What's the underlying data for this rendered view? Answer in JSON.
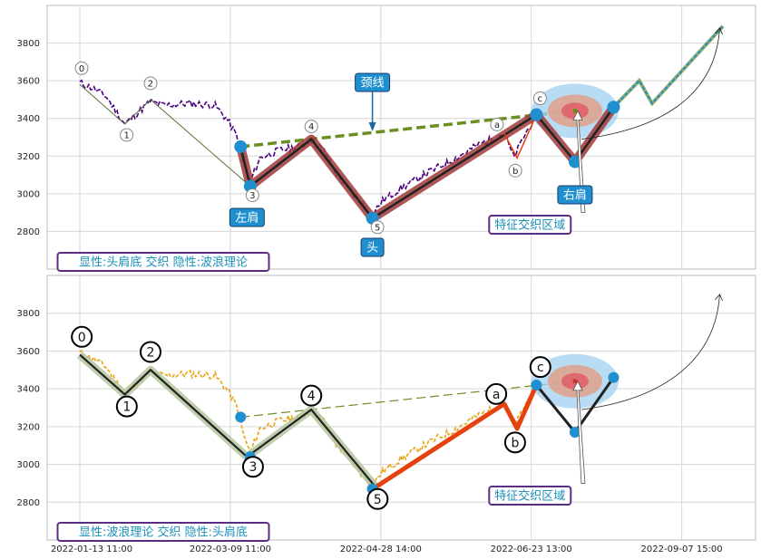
{
  "chart_data": {
    "type": "line",
    "x_tick_labels": [
      "2022-01-13 11:00",
      "2022-03-09 11:00",
      "2022-04-28 14:00",
      "2022-06-23 13:00",
      "2022-09-07 15:00"
    ],
    "y_ticks": [
      2800,
      3000,
      3200,
      3400,
      3600,
      3800
    ],
    "ylim": [
      2600,
      4000
    ],
    "grid": true,
    "panels": [
      {
        "caption": "显性:头肩底 交织 隐性:波浪理论",
        "price_color": "#4b0082",
        "wave_labels": [
          "0",
          "1",
          "2",
          "3",
          "4",
          "5",
          "a",
          "b",
          "c"
        ],
        "annotations": {
          "neckline": "颈线",
          "left_shoulder": "左肩",
          "head": "头",
          "right_shoulder": "右肩",
          "feature_zone": "特征交织区域"
        },
        "colors": {
          "zigzag": "#a03a3a",
          "neckline": "#6b8e23",
          "pattern_fill": "#1f8fd0"
        }
      },
      {
        "caption": "显性:波浪理论 交织 隐性:头肩底",
        "price_color": "#e8a317",
        "wave_labels": [
          "0",
          "1",
          "2",
          "3",
          "4",
          "5",
          "a",
          "b",
          "c"
        ],
        "annotations": {
          "feature_zone": "特征交织区域"
        },
        "colors": {
          "wave": "#222222",
          "impulse": "#e5420f",
          "neckline": "#6b8e23"
        }
      }
    ],
    "pivots": [
      {
        "label": "0",
        "x": 0.0,
        "y": 3580
      },
      {
        "label": "1",
        "x": 0.07,
        "y": 3370
      },
      {
        "label": "2",
        "x": 0.11,
        "y": 3500
      },
      {
        "label": "3",
        "x": 0.26,
        "y": 3040
      },
      {
        "label": "4",
        "x": 0.36,
        "y": 3290
      },
      {
        "label": "5",
        "x": 0.46,
        "y": 2880
      },
      {
        "label": "a",
        "x": 0.66,
        "y": 3320
      },
      {
        "label": "b",
        "x": 0.68,
        "y": 3190
      },
      {
        "label": "c",
        "x": 0.71,
        "y": 3420
      }
    ]
  }
}
